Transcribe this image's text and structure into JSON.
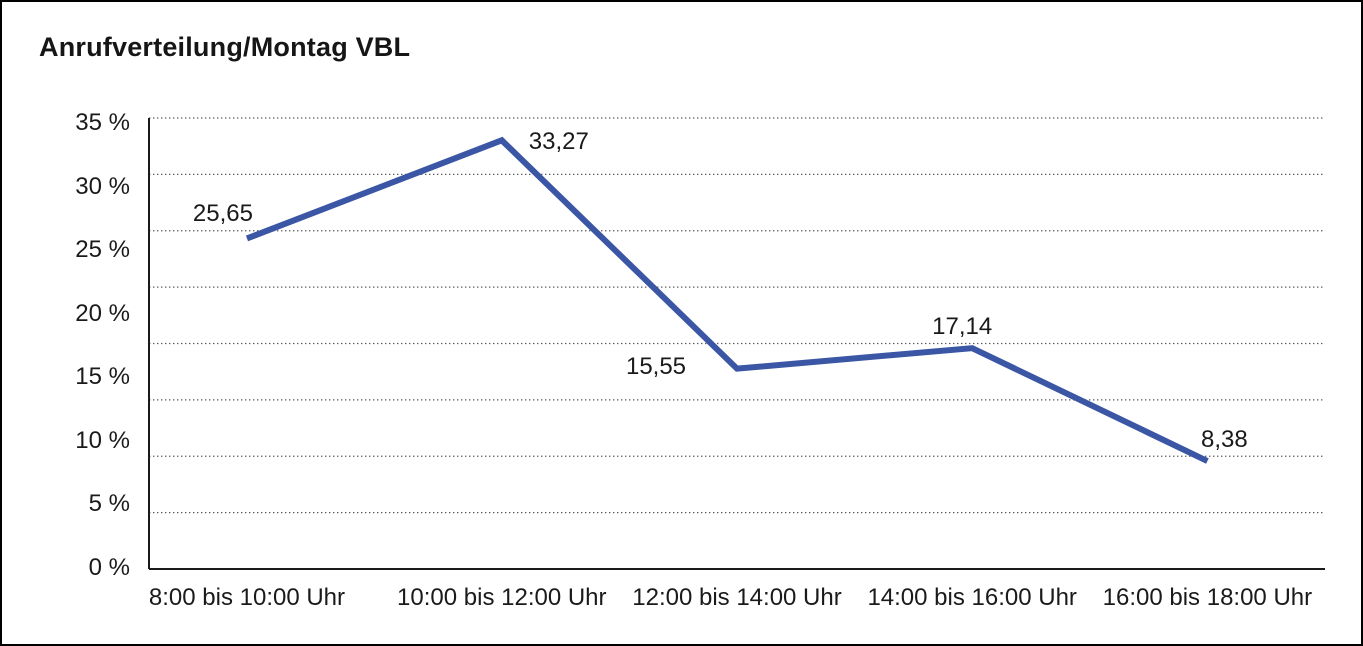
{
  "chart_data": {
    "type": "line",
    "title": "Anrufverteilung/Montag VBL",
    "categories": [
      "8:00 bis 10:00 Uhr",
      "10:00 bis 12:00 Uhr",
      "12:00 bis 14:00 Uhr",
      "14:00 bis 16:00 Uhr",
      "16:00 bis 18:00 Uhr"
    ],
    "values": [
      25.65,
      33.27,
      15.55,
      17.14,
      8.38
    ],
    "point_labels": [
      "25,65",
      "33,27",
      "15,55",
      "17,14",
      "8,38"
    ],
    "ytick_labels": [
      "35 %",
      "30 %",
      "25 %",
      "20 %",
      "15 %",
      "10 %",
      "5 %",
      "0 %"
    ],
    "ylim": [
      0,
      35
    ],
    "xlabel": "",
    "ylabel": "",
    "grid": "horizontal-dotted",
    "legend": "none",
    "colors": {
      "line": "#3A56A5",
      "axis": "#1a1a1a",
      "gridline": "#5a5a5a",
      "text": "#1a1a1a",
      "background": "#ffffff",
      "border": "#000000"
    }
  }
}
